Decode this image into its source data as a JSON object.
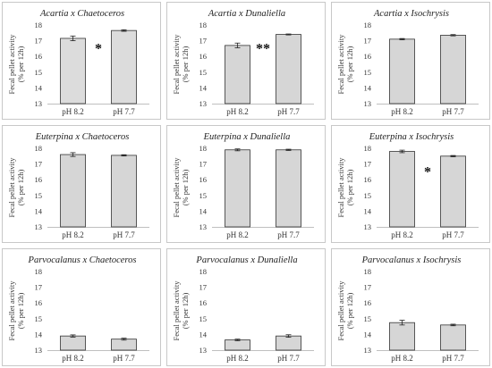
{
  "chart_data": [
    {
      "type": "bar",
      "title": "Acartia x Chaetoceros",
      "categories": [
        "pH 8.2",
        "pH 7.7"
      ],
      "values": [
        17.15,
        17.65
      ],
      "errors": [
        0.15,
        0.05
      ],
      "ylabel_line1": "Fecal pellet activity",
      "ylabel_line2": "(% per 12h)",
      "ylim": [
        13,
        18
      ],
      "yticks": [
        "13",
        "14",
        "15",
        "16",
        "17",
        "18"
      ],
      "significance": "*",
      "bar_color": "#dcdcdc"
    },
    {
      "type": "bar",
      "title": "Acartia x Dunaliella",
      "categories": [
        "pH 8.2",
        "pH 7.7"
      ],
      "values": [
        16.7,
        17.4
      ],
      "errors": [
        0.15,
        0.03
      ],
      "ylabel_line1": "Fecal pellet activity",
      "ylabel_line2": "(% per 12h)",
      "ylim": [
        13,
        18
      ],
      "yticks": [
        "13",
        "14",
        "15",
        "16",
        "17",
        "18"
      ],
      "significance": "**",
      "bar_color": "#d6d6d6"
    },
    {
      "type": "bar",
      "title": "Acartia x Isochrysis",
      "categories": [
        "pH 8.2",
        "pH 7.7"
      ],
      "values": [
        17.1,
        17.35
      ],
      "errors": [
        0.04,
        0.04
      ],
      "ylabel_line1": "Fecal pellet activity",
      "ylabel_line2": "(% per 12h)",
      "ylim": [
        13,
        18
      ],
      "yticks": [
        "13",
        "14",
        "15",
        "16",
        "17",
        "18"
      ],
      "significance": "",
      "bar_color": "#d6d6d6"
    },
    {
      "type": "bar",
      "title": "Euterpina x Chaetoceros",
      "categories": [
        "pH 8.2",
        "pH 7.7"
      ],
      "values": [
        17.6,
        17.55
      ],
      "errors": [
        0.12,
        0.04
      ],
      "ylabel_line1": "Fecal pellet activity",
      "ylabel_line2": "(% per 12h)",
      "ylim": [
        13,
        18
      ],
      "yticks": [
        "13",
        "14",
        "15",
        "16",
        "17",
        "18"
      ],
      "significance": "",
      "bar_color": "#d6d6d6"
    },
    {
      "type": "bar",
      "title": "Euterpina x Dunaliella",
      "categories": [
        "pH 8.2",
        "pH 7.7"
      ],
      "values": [
        17.9,
        17.9
      ],
      "errors": [
        0.06,
        0.04
      ],
      "ylabel_line1": "Fecal pellet activity",
      "ylabel_line2": "(% per 12h)",
      "ylim": [
        13,
        18
      ],
      "yticks": [
        "13",
        "14",
        "15",
        "16",
        "17",
        "18"
      ],
      "significance": "",
      "bar_color": "#d6d6d6"
    },
    {
      "type": "bar",
      "title": "Euterpina x Isochrysis",
      "categories": [
        "pH 8.2",
        "pH 7.7"
      ],
      "values": [
        17.8,
        17.5
      ],
      "errors": [
        0.08,
        0.04
      ],
      "ylabel_line1": "Fecal pellet activity",
      "ylabel_line2": "(% per 12h)",
      "ylim": [
        13,
        18
      ],
      "yticks": [
        "13",
        "14",
        "15",
        "16",
        "17",
        "18"
      ],
      "significance": "*",
      "bar_color": "#d6d6d6"
    },
    {
      "type": "bar",
      "title": "Parvocalanus x Chaetoceros",
      "categories": [
        "pH 8.2",
        "pH 7.7"
      ],
      "values": [
        13.9,
        13.7
      ],
      "errors": [
        0.07,
        0.06
      ],
      "ylabel_line1": "Fecal pellet activity",
      "ylabel_line2": "(% per 12h)",
      "ylim": [
        13,
        18
      ],
      "yticks": [
        "13",
        "14",
        "15",
        "16",
        "17",
        "18"
      ],
      "significance": "",
      "bar_color": "#d6d6d6"
    },
    {
      "type": "bar",
      "title": "Parvocalanus x Dunaliella",
      "categories": [
        "pH 8.2",
        "pH 7.7"
      ],
      "values": [
        13.65,
        13.9
      ],
      "errors": [
        0.05,
        0.08
      ],
      "ylabel_line1": "Fecal pellet activity",
      "ylabel_line2": "(% per 12h)",
      "ylim": [
        13,
        18
      ],
      "yticks": [
        "13",
        "14",
        "15",
        "16",
        "17",
        "18"
      ],
      "significance": "",
      "bar_color": "#d6d6d6"
    },
    {
      "type": "bar",
      "title": "Parvocalanus x Isochrysis",
      "categories": [
        "pH 8.2",
        "pH 7.7"
      ],
      "values": [
        14.75,
        14.6
      ],
      "errors": [
        0.15,
        0.05
      ],
      "ylabel_line1": "Fecal pellet activity",
      "ylabel_line2": "(% per 12h)",
      "ylim": [
        13,
        18
      ],
      "yticks": [
        "13",
        "14",
        "15",
        "16",
        "17",
        "18"
      ],
      "significance": "",
      "bar_color": "#d6d6d6"
    }
  ]
}
